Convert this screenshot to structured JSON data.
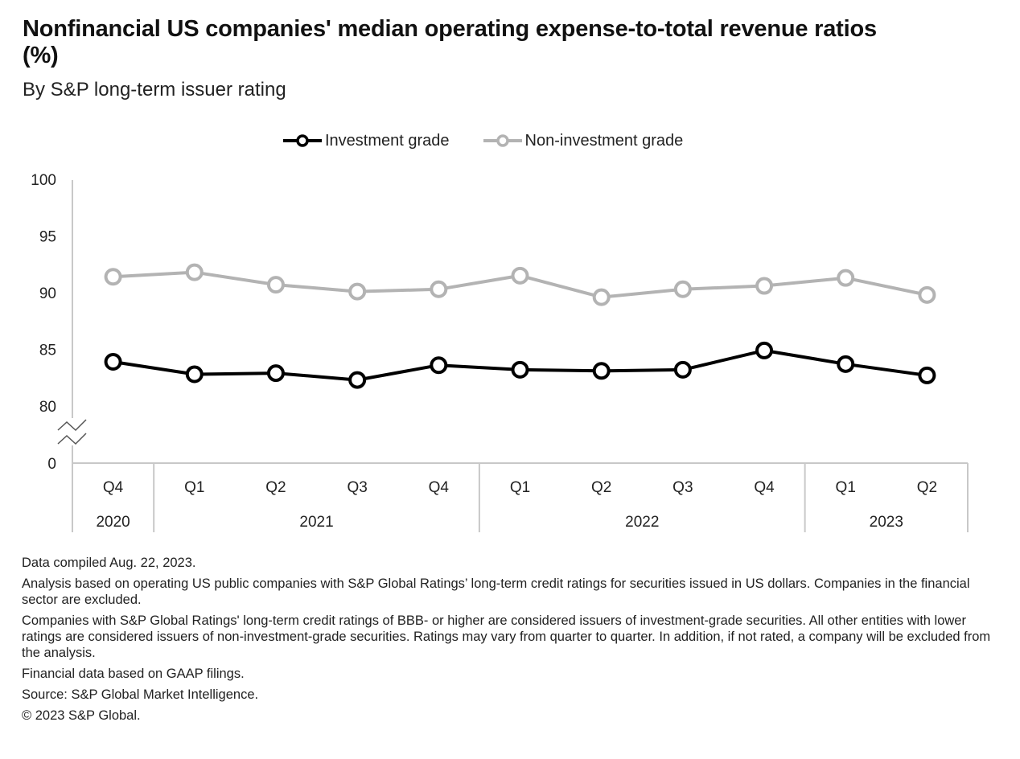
{
  "title": "Nonfinancial US companies' median operating expense-to-total revenue ratios (%)",
  "subtitle": "By S&P long-term issuer rating",
  "colors": {
    "investment_grade": "#000000",
    "non_investment_grade": "#b3b3b3",
    "axis": "#c8c8c8",
    "text": "#222222"
  },
  "chart_data": {
    "type": "line",
    "title": "Nonfinancial US companies' median operating expense-to-total revenue ratios (%)",
    "subtitle": "By S&P long-term issuer rating",
    "xlabel": "",
    "ylabel": "",
    "ylim": [
      80,
      100
    ],
    "y_axis_break": {
      "below": 80,
      "baseline_label": "0"
    },
    "yticks": [
      100,
      95,
      90,
      85,
      80
    ],
    "baseline_tick": "0",
    "grid": false,
    "legend_position": "top-center",
    "categories": [
      "Q4",
      "Q1",
      "Q2",
      "Q3",
      "Q4",
      "Q1",
      "Q2",
      "Q3",
      "Q4",
      "Q1",
      "Q2"
    ],
    "category_groups": [
      {
        "label": "2020",
        "span": 1
      },
      {
        "label": "2021",
        "span": 4
      },
      {
        "label": "2022",
        "span": 4
      },
      {
        "label": "2023",
        "span": 2
      }
    ],
    "series": [
      {
        "name": "Investment grade",
        "color": "#000000",
        "values": [
          83.9,
          82.8,
          82.9,
          82.3,
          83.6,
          83.2,
          83.1,
          83.2,
          84.9,
          83.7,
          82.7
        ]
      },
      {
        "name": "Non-investment grade",
        "color": "#b3b3b3",
        "values": [
          91.4,
          91.8,
          90.7,
          90.1,
          90.3,
          91.5,
          89.6,
          90.3,
          90.6,
          91.3,
          89.8
        ]
      }
    ]
  },
  "footnotes": [
    "Data compiled Aug. 22, 2023.",
    "Analysis based on operating US public companies with S&P Global Ratings’ long-term credit ratings for securities issued in US dollars. Companies in the financial sector are excluded.",
    "Companies with S&P Global Ratings' long-term credit ratings of BBB- or higher are considered issuers of investment-grade securities. All other entities with lower ratings are considered issuers of non-investment-grade securities. Ratings may vary from quarter to quarter. In addition, if not rated, a company will be excluded from the analysis.",
    "Financial data based on GAAP filings.",
    "Source: S&P Global Market Intelligence.",
    "© 2023 S&P Global."
  ]
}
